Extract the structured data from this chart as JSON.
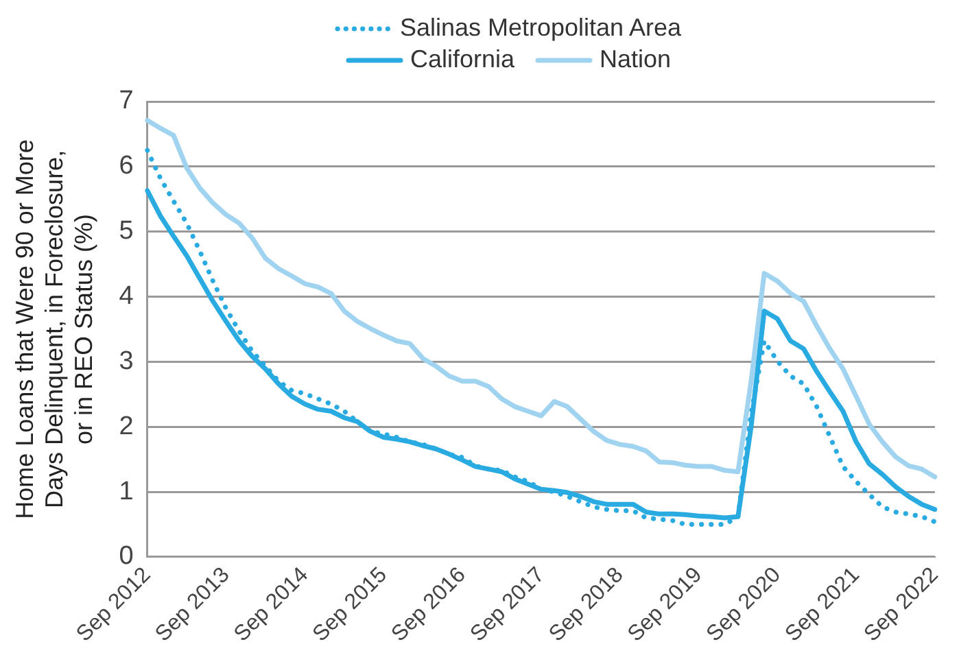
{
  "chart_data": {
    "type": "line",
    "ylabel": "Home Loans that Were 90 or More Days Delinquent, in Foreclosure, or in REO Status (%)",
    "categories": [
      "Sep 2012",
      null,
      null,
      null,
      null,
      null,
      "Sep 2013",
      null,
      null,
      null,
      null,
      null,
      "Sep 2014",
      null,
      null,
      null,
      null,
      null,
      "Sep 2015",
      null,
      null,
      null,
      null,
      null,
      "Sep 2016",
      null,
      null,
      null,
      null,
      null,
      "Sep 2017",
      null,
      null,
      null,
      null,
      null,
      "Sep 2018",
      null,
      null,
      null,
      null,
      null,
      "Sep 2019",
      null,
      null,
      null,
      null,
      null,
      "Sep 2020",
      null,
      null,
      null,
      null,
      null,
      "Sep 2021",
      null,
      null,
      null,
      null,
      null,
      "Sep 2022"
    ],
    "series": [
      {
        "name": "Salinas Metropolitan Area",
        "color": "#29abe2",
        "line_style": "dotted",
        "values": [
          6.25,
          5.82,
          5.47,
          5.13,
          4.7,
          4.24,
          3.82,
          3.47,
          3.16,
          2.93,
          2.7,
          2.56,
          2.51,
          2.43,
          2.35,
          2.24,
          2.08,
          1.93,
          1.89,
          1.84,
          1.77,
          1.73,
          1.66,
          1.58,
          1.53,
          1.4,
          1.35,
          1.33,
          1.23,
          1.16,
          1.04,
          1.0,
          0.93,
          0.85,
          0.77,
          0.73,
          0.71,
          0.71,
          0.6,
          0.58,
          0.56,
          0.5,
          0.5,
          0.5,
          0.5,
          0.62,
          2.2,
          3.32,
          3.01,
          2.78,
          2.66,
          2.31,
          1.85,
          1.39,
          1.16,
          0.96,
          0.77,
          0.69,
          0.66,
          0.62,
          0.54
        ]
      },
      {
        "name": "California",
        "color": "#29abe2",
        "line_style": "solid",
        "values": [
          5.63,
          5.24,
          4.93,
          4.63,
          4.28,
          3.93,
          3.62,
          3.32,
          3.08,
          2.89,
          2.66,
          2.47,
          2.35,
          2.27,
          2.24,
          2.14,
          2.08,
          1.93,
          1.84,
          1.81,
          1.77,
          1.71,
          1.66,
          1.58,
          1.49,
          1.39,
          1.35,
          1.31,
          1.2,
          1.12,
          1.04,
          1.02,
          0.99,
          0.93,
          0.85,
          0.81,
          0.81,
          0.81,
          0.69,
          0.66,
          0.66,
          0.65,
          0.63,
          0.62,
          0.6,
          0.62,
          2.0,
          3.78,
          3.66,
          3.32,
          3.2,
          2.85,
          2.54,
          2.24,
          1.77,
          1.43,
          1.27,
          1.08,
          0.93,
          0.81,
          0.73
        ]
      },
      {
        "name": "Nation",
        "color": "#9fd3f0",
        "line_style": "solid",
        "values": [
          6.71,
          6.59,
          6.48,
          5.98,
          5.67,
          5.44,
          5.26,
          5.13,
          4.9,
          4.59,
          4.43,
          4.32,
          4.2,
          4.15,
          4.05,
          3.78,
          3.62,
          3.51,
          3.41,
          3.32,
          3.28,
          3.05,
          2.93,
          2.78,
          2.7,
          2.7,
          2.62,
          2.43,
          2.31,
          2.24,
          2.17,
          2.39,
          2.31,
          2.12,
          1.93,
          1.79,
          1.73,
          1.7,
          1.63,
          1.46,
          1.45,
          1.41,
          1.39,
          1.39,
          1.33,
          1.31,
          2.7,
          4.36,
          4.24,
          4.05,
          3.93,
          3.55,
          3.2,
          2.89,
          2.47,
          2.04,
          1.77,
          1.54,
          1.4,
          1.35,
          1.23
        ]
      }
    ],
    "ylim": [
      0,
      7
    ],
    "yticks": [
      0,
      1,
      2,
      3,
      4,
      5,
      6,
      7
    ],
    "grid": "y",
    "legend": "top",
    "marker": "none"
  }
}
